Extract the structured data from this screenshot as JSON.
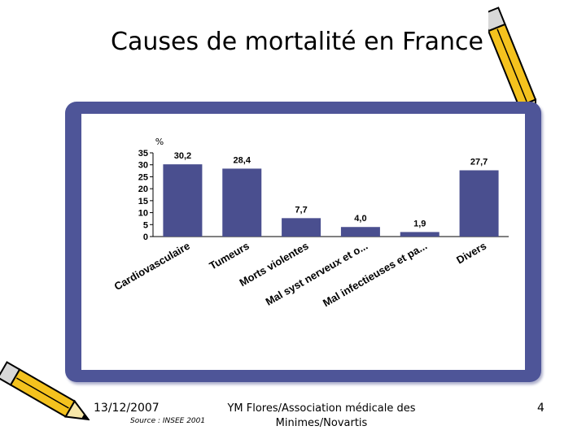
{
  "slide": {
    "title": "Causes de mortalité en France",
    "date": "13/12/2007",
    "source": "Source : INSEE 2001",
    "organization": "YM Flores/Association médicale des Minimes/Novartis",
    "page_number": "4"
  },
  "colors": {
    "frame": "#4e5598",
    "bar": "#4a4f8f",
    "pencil_body": "#f4c21e",
    "pencil_outline": "#000000"
  },
  "icons": [
    "pencil-icon",
    "pencil-icon"
  ],
  "chart_data": {
    "type": "bar",
    "ylabel": "%",
    "ylim": [
      0,
      35
    ],
    "yticks": [
      0,
      5,
      10,
      15,
      20,
      25,
      30,
      35
    ],
    "categories": [
      "Cardiovasculaire",
      "Tumeurs",
      "Morts violentes",
      "Mal syst nerveux et o...",
      "Mal infectieuses et pa...",
      "Divers"
    ],
    "values": [
      30.2,
      28.4,
      7.7,
      4.0,
      1.9,
      27.7
    ],
    "value_labels": [
      "30,2",
      "28,4",
      "7,7",
      "4,0",
      "1,9",
      "27,7"
    ],
    "grid": false,
    "legend": "none"
  }
}
